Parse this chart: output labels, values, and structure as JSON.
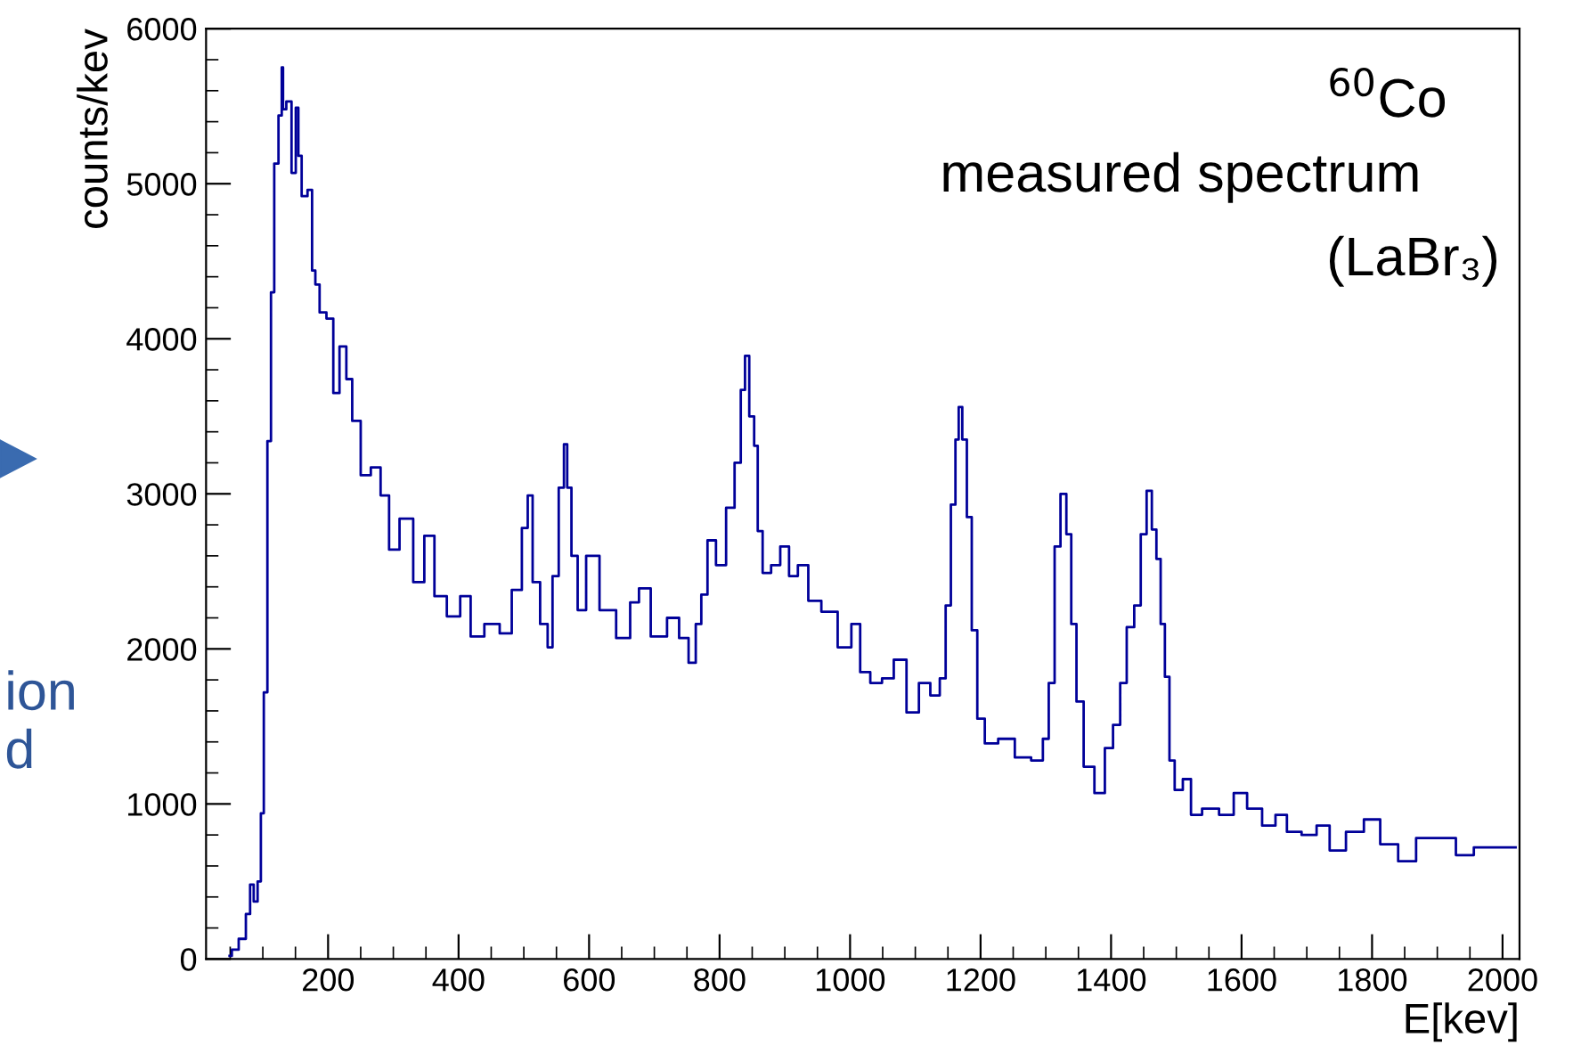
{
  "chart_data": {
    "type": "step",
    "xlabel": "E[kev]",
    "ylabel": "counts/kev",
    "annotations": [
      "$^{60}$Co",
      "measured spectrum",
      "(LaBr₃)",
      "ion",
      "d"
    ],
    "xlim": [
      13,
      2026
    ],
    "xticks": [
      200,
      400,
      600,
      800,
      1000,
      1200,
      1400,
      1600,
      1800,
      2000
    ],
    "ylim": [
      0,
      6000
    ],
    "yticks": [
      0,
      1000,
      2000,
      3000,
      4000,
      5000,
      6000
    ],
    "grid": false,
    "legend": false,
    "series": [
      {
        "color": "#000099",
        "x": [
          49,
          56,
          70,
          78,
          83,
          89,
          95,
          99,
          104,
          110,
          115,
          120,
          128,
          130,
          132,
          140,
          148,
          153,
          156,
          163,
          174,
          177,
          184,
          190,
          205,
          211,
          224,
          232,
          242,
          258,
          273,
          288,
          299,
          320,
          341,
          354,
          372,
          392,
          413,
          424,
          455,
          471,
          492,
          502,
          510,
          517,
          533,
          540,
          548,
          559,
          564,
          569,
          577,
          588,
          603,
          629,
          654,
          672,
          681,
          708,
          731,
          745,
          760,
          767,
          777,
          786,
          803,
          817,
          829,
          836,
          842,
          849,
          857,
          860,
          872,
          886,
          900,
          913,
          927,
          945,
          967,
          995,
          1009,
          1022,
          1040,
          1058,
          1076,
          1097,
          1114,
          1132,
          1143,
          1150,
          1159,
          1164,
          1169,
          1175,
          1183,
          1190,
          1200,
          1213,
          1241,
          1264,
          1291,
          1300,
          1309,
          1318,
          1327,
          1336,
          1342,
          1352,
          1364,
          1385,
          1396,
          1410,
          1418,
          1430,
          1441,
          1450,
          1459,
          1466,
          1473,
          1479,
          1486,
          1493,
          1502,
          1518,
          1527,
          1552,
          1579,
          1597,
          1620,
          1643,
          1661,
          1678,
          1706,
          1724,
          1746,
          1774,
          1801,
          1824,
          1856,
          1879,
          1915,
          1942,
          1970,
          2020
        ],
        "values": [
          20,
          60,
          130,
          290,
          480,
          370,
          500,
          940,
          1720,
          3340,
          4300,
          5130,
          5440,
          5750,
          5480,
          5530,
          5070,
          5490,
          5180,
          4920,
          4960,
          4440,
          4350,
          4170,
          4130,
          3650,
          3950,
          3740,
          3470,
          3120,
          3170,
          2990,
          2640,
          2840,
          2430,
          2730,
          2340,
          2210,
          2340,
          2080,
          2160,
          2100,
          2380,
          2780,
          2990,
          2430,
          2160,
          2010,
          2470,
          3040,
          3320,
          3040,
          2600,
          2250,
          2600,
          2250,
          2070,
          2300,
          2390,
          2080,
          2200,
          2070,
          1910,
          2160,
          2350,
          2700,
          2540,
          2910,
          3200,
          3670,
          3890,
          3500,
          3310,
          2760,
          2490,
          2540,
          2660,
          2470,
          2540,
          2310,
          2240,
          2010,
          2160,
          1850,
          1780,
          1810,
          1930,
          1590,
          1780,
          1700,
          1810,
          2280,
          2930,
          3350,
          3560,
          3350,
          2850,
          2120,
          1550,
          1390,
          1420,
          1300,
          1280,
          1420,
          1780,
          2660,
          3000,
          2740,
          2160,
          1660,
          1240,
          1070,
          1360,
          1510,
          1780,
          2140,
          2280,
          2740,
          3020,
          2770,
          2580,
          2160,
          1820,
          1280,
          1090,
          1160,
          930,
          970,
          930,
          1070,
          970,
          860,
          930,
          820,
          800,
          860,
          700,
          820,
          900,
          740,
          630,
          780,
          780,
          670,
          720,
          720
        ]
      }
    ]
  }
}
